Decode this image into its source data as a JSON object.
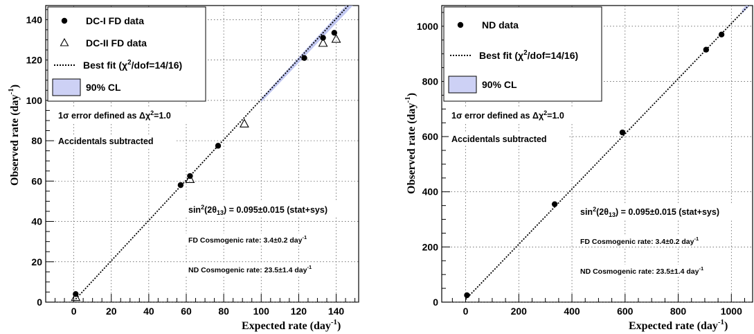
{
  "chart_data": [
    {
      "type": "scatter",
      "xlabel": "Expected rate (day",
      "xlabel_sup": "-1",
      "xlabel_close": ")",
      "ylabel": "Observed rate (day",
      "ylabel_sup": "-1",
      "ylabel_close": ")",
      "xlim": [
        -15,
        152
      ],
      "ylim": [
        0,
        147
      ],
      "xticks": [
        0,
        20,
        40,
        60,
        80,
        100,
        120,
        140
      ],
      "yticks": [
        0,
        20,
        40,
        60,
        80,
        100,
        120,
        140
      ],
      "grid": true,
      "legend_position": "top-left",
      "legend": {
        "dc1": "DC-I FD data",
        "dc2": "DC-II FD data",
        "fit_prefix": "Best fit (",
        "fit_chi": "χ",
        "fit_sup": "2",
        "fit_suffix": "/dof=14/16)",
        "cl": "90% CL"
      },
      "series": [
        {
          "name": "DC-I FD data",
          "marker": "filled-circle",
          "points": [
            [
              1,
              4
            ],
            [
              57,
              58
            ],
            [
              62,
              62.5
            ],
            [
              77,
              77.5
            ],
            [
              123,
              121
            ],
            [
              133,
              131
            ],
            [
              139,
              133.5
            ]
          ]
        },
        {
          "name": "DC-II FD data",
          "marker": "open-triangle",
          "points": [
            [
              1,
              2.5
            ],
            [
              62,
              61
            ],
            [
              91,
              88.5
            ],
            [
              133,
              128.5
            ],
            [
              140,
              130.5
            ]
          ]
        }
      ],
      "fit_line": {
        "x": [
          1,
          150
        ],
        "y": [
          1.5,
          150.5
        ]
      },
      "cl_band": {
        "x": [
          100,
          152
        ],
        "y_low": [
          99,
          150
        ],
        "y_high": [
          101,
          154
        ]
      },
      "annotations": {
        "sigma_prefix": "1",
        "sigma_symbol": "σ",
        "sigma_mid": " error defined as  Δ",
        "sigma_chi": "χ",
        "sigma_sup": "2",
        "sigma_suffix": "=1.0",
        "accidentals": "Accidentals subtracted",
        "sin_prefix": "sin",
        "sin_sup": "2",
        "sin_mid": "(2θ",
        "sin_sub": "13",
        "sin_suffix": ") = 0.095±0.015 (stat+sys)",
        "fd_cosmo": "FD Cosmogenic rate: 3.4±0.2 day",
        "fd_cosmo_sup": "-1",
        "nd_cosmo": "ND Cosmogenic rate: 23.5±1.4 day",
        "nd_cosmo_sup": "-1"
      }
    },
    {
      "type": "scatter",
      "xlabel": "Expected rate (day",
      "xlabel_sup": "-1",
      "xlabel_close": ")",
      "ylabel": "Observed rate (day",
      "ylabel_sup": "-1",
      "ylabel_close": ")",
      "xlim": [
        -90,
        1080
      ],
      "ylim": [
        0,
        1075
      ],
      "xticks": [
        0,
        200,
        400,
        600,
        800,
        1000
      ],
      "yticks": [
        0,
        200,
        400,
        600,
        800,
        1000
      ],
      "grid": true,
      "legend_position": "top-left",
      "legend": {
        "nd": "ND data",
        "fit_prefix": "Best fit (",
        "fit_chi": "χ",
        "fit_sup": "2",
        "fit_suffix": "/dof=14/16)",
        "cl": "90% CL"
      },
      "series": [
        {
          "name": "ND data",
          "marker": "filled-circle",
          "points": [
            [
              5,
              25
            ],
            [
              335,
              355
            ],
            [
              590,
              615
            ],
            [
              905,
              915
            ],
            [
              963,
              970
            ]
          ]
        }
      ],
      "fit_line": {
        "x": [
          0,
          1080
        ],
        "y": [
          10,
          1090
        ]
      },
      "cl_band": {
        "x": [
          1040,
          1080
        ],
        "y_low": [
          1045,
          1085
        ],
        "y_high": [
          1060,
          1100
        ]
      },
      "annotations": {
        "sigma_prefix": "1",
        "sigma_symbol": "σ",
        "sigma_mid": " error defined as  Δ",
        "sigma_chi": "χ",
        "sigma_sup": "2",
        "sigma_suffix": "=1.0",
        "accidentals": "Accidentals subtracted",
        "sin_prefix": "sin",
        "sin_sup": "2",
        "sin_mid": "(2θ",
        "sin_sub": "13",
        "sin_suffix": ") = 0.095±0.015 (stat+sys)",
        "fd_cosmo": "FD Cosmogenic rate: 3.4±0.2 day",
        "fd_cosmo_sup": "-1",
        "nd_cosmo": "ND Cosmogenic rate: 23.5±1.4 day",
        "nd_cosmo_sup": "-1"
      }
    }
  ]
}
